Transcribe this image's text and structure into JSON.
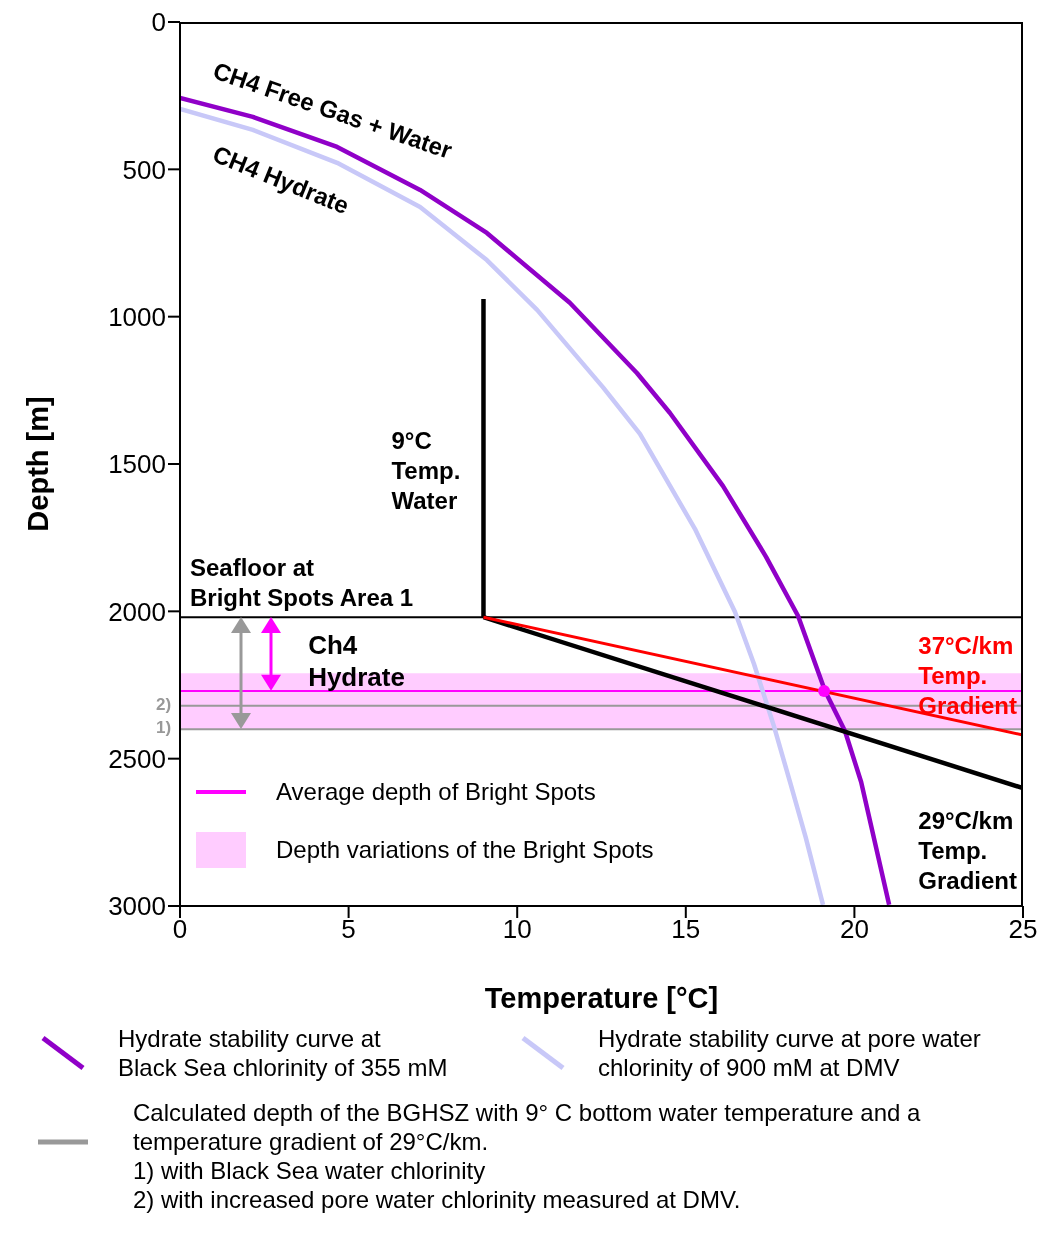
{
  "chart_data": {
    "type": "line",
    "xlabel": "Temperature [°C]",
    "ylabel": "Depth [m]",
    "xlim": [
      0,
      25
    ],
    "xticks": [
      0,
      5,
      10,
      15,
      20,
      25
    ],
    "ylim": [
      3000,
      0
    ],
    "yticks": [
      0,
      500,
      1000,
      1500,
      2000,
      2500,
      3000
    ],
    "legend": "bottom",
    "line_style": "solid",
    "series": [
      {
        "name": "Hydrate stability curve at\nBlack Sea chlorinity of 355 mM",
        "color": "#9000c8",
        "x": [
          0,
          2.16,
          4.66,
          7.12,
          9.1,
          11.56,
          13.55,
          14.53,
          16.1,
          17.38,
          18.33,
          19.13,
          19.72,
          20.2,
          21.03
        ],
        "values": [
          258,
          322,
          424,
          570,
          716,
          953,
          1191,
          1327,
          1574,
          1815,
          2016,
          2270,
          2406,
          2579,
          2996
        ]
      },
      {
        "name": "Hydrate stability curve at pore water\nchlorinity of 900 mM at DMV",
        "color": "#c8c8f8",
        "x": [
          0,
          2.16,
          4.66,
          7.12,
          9.1,
          10.59,
          12.54,
          13.64,
          15.27,
          16.46,
          17.02,
          17.62,
          18.09,
          18.56,
          19.07
        ],
        "values": [
          295,
          366,
          478,
          628,
          808,
          977,
          1239,
          1398,
          1720,
          2002,
          2178,
          2392,
          2579,
          2769,
          2996
        ]
      },
      {
        "name": "9°C\nTemp.\nWater",
        "color": "#000000",
        "x": [
          9,
          9
        ],
        "values": [
          940,
          2020
        ]
      },
      {
        "name": "29°C/km\nTemp.\nGradient",
        "color": "#000000",
        "x": [
          9,
          25
        ],
        "values": [
          2020,
          2600
        ]
      },
      {
        "name": "37°C/km\nTemp.\nGradient",
        "color": "#ff0000",
        "x": [
          9,
          25
        ],
        "values": [
          2020,
          2420
        ]
      },
      {
        "type": "scatter",
        "color": "#ff00ff",
        "x": [
          19.1
        ],
        "values": [
          2270
        ]
      }
    ],
    "ref_lines": [
      {
        "axis": "y",
        "value": 2020,
        "label": "Seafloor at\nBright Spots Area 1",
        "color": "#000000"
      },
      {
        "axis": "y",
        "value": 2270,
        "label": "Average depth of Bright Spots",
        "color": "#ff00ff"
      },
      {
        "axis": "y",
        "value": 2400,
        "color": "#999999"
      },
      {
        "axis": "y",
        "value": 2320,
        "color": "#999999"
      }
    ],
    "bands": [
      {
        "axis": "y",
        "from": 2210,
        "to": 2400,
        "label": "Depth variations of the Bright Spots",
        "color": "#ffccff"
      }
    ],
    "annotations": [
      "CH4 Free Gas + Water",
      "CH4 Hydrate",
      "Ch4\nHydrate",
      "2)",
      "1)",
      "Calculated depth of the BGHSZ with 9° C bottom water temperature and a\ntemperature gradient of 29°C/km.\n1) with Black Sea water chlorinity\n2) with increased pore water chlorinity measured at DMV."
    ]
  }
}
